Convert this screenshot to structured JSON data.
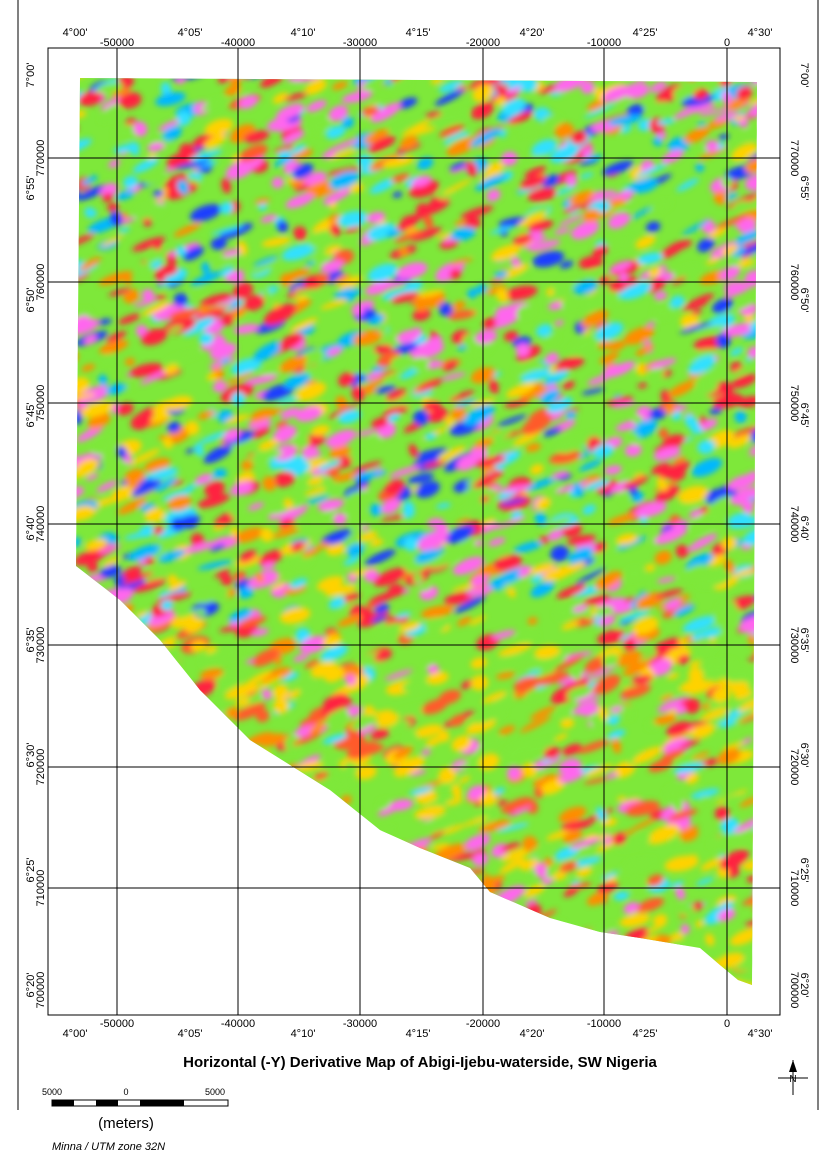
{
  "map": {
    "title": "Horizontal (-Y) Derivative Map of Abigi-Ijebu-waterside, SW Nigeria",
    "longitude_labels": [
      "4°00'",
      "4°05'",
      "4°10'",
      "4°15'",
      "4°20'",
      "4°25'",
      "4°30'"
    ],
    "easting_labels": [
      "-50000",
      "-40000",
      "-30000",
      "-20000",
      "-10000",
      "0"
    ],
    "latitude_labels": [
      "7°00'",
      "6°55'",
      "6°50'",
      "6°45'",
      "6°40'",
      "6°35'",
      "6°30'",
      "6°25'",
      "6°20'"
    ],
    "northing_labels": [
      "770000",
      "760000",
      "750000",
      "740000",
      "730000",
      "720000",
      "710000",
      "700000"
    ],
    "scale_bar": {
      "labels": [
        "5000",
        "0",
        "5000"
      ],
      "unit": "(meters)"
    },
    "projection": "Minna / UTM zone 32N",
    "north_arrow": "N"
  }
}
